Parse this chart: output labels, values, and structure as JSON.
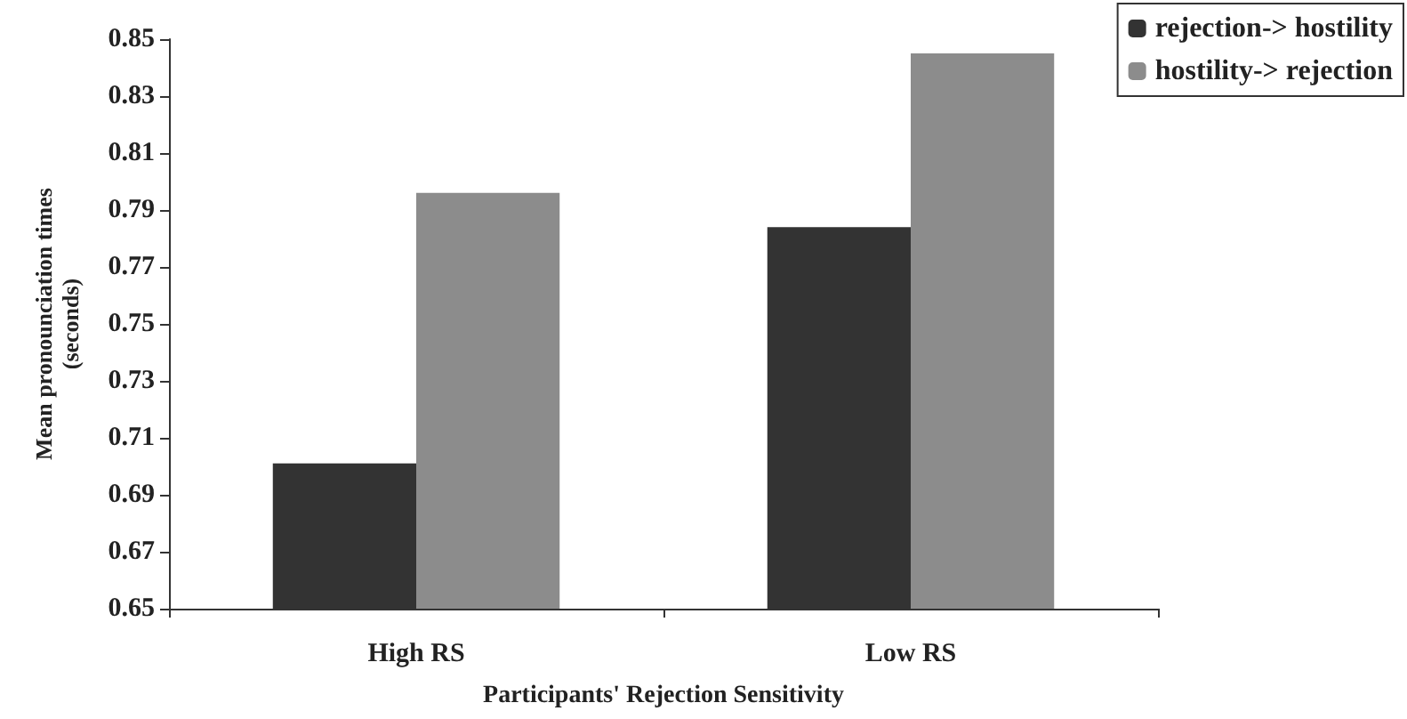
{
  "chart_data": {
    "type": "bar",
    "xlabel": "Participants' Rejection Sensitivity",
    "ylabel": "Mean pronounciation times\n(seconds)",
    "categories": [
      "High RS",
      "Low RS"
    ],
    "series": [
      {
        "name": "rejection-> hostility",
        "color": "#333333",
        "values": [
          0.701,
          0.784
        ]
      },
      {
        "name": "hostility-> rejection",
        "color": "#8c8c8c",
        "values": [
          0.796,
          0.845
        ]
      }
    ],
    "ylim": [
      0.65,
      0.85
    ],
    "yticks": [
      0.65,
      0.67,
      0.69,
      0.71,
      0.73,
      0.75,
      0.77,
      0.79,
      0.81,
      0.83,
      0.85
    ],
    "grid": false,
    "legend": "top right"
  }
}
